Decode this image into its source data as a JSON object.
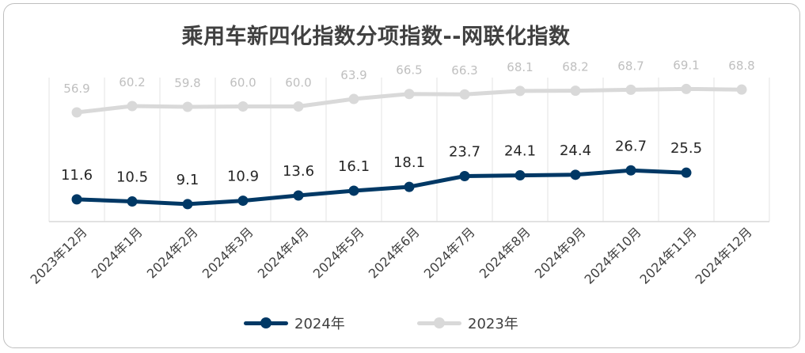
{
  "chart_data": {
    "type": "line",
    "title": "乘用车新四化指数分项指数--网联化指数",
    "categories": [
      "2023年12月",
      "2024年1月",
      "2024年2月",
      "2024年3月",
      "2024年4月",
      "2024年5月",
      "2024年6月",
      "2024年7月",
      "2024年8月",
      "2024年9月",
      "2024年10月",
      "2024年11月",
      "2024年12月"
    ],
    "series": [
      {
        "name": "2024年",
        "color": "#003865",
        "values": [
          11.6,
          10.5,
          9.1,
          10.9,
          13.6,
          16.1,
          18.1,
          23.7,
          24.1,
          24.4,
          26.7,
          25.5,
          null
        ],
        "labels": [
          "11.6",
          "10.5",
          "9.1",
          "10.9",
          "13.6",
          "16.1",
          "18.1",
          "23.7",
          "24.1",
          "24.4",
          "26.7",
          "25.5",
          ""
        ]
      },
      {
        "name": "2023年",
        "color": "#d9d9d9",
        "values": [
          56.9,
          60.2,
          59.8,
          60.0,
          60.0,
          63.9,
          66.5,
          66.3,
          68.1,
          68.2,
          68.7,
          69.1,
          68.8
        ],
        "labels": [
          "56.9",
          "60.2",
          "59.8",
          "60.0",
          "60.0",
          "63.9",
          "66.5",
          "66.3",
          "68.1",
          "68.2",
          "68.7",
          "69.1",
          "68.8"
        ]
      }
    ],
    "xlabel": "",
    "ylabel": "",
    "grid": "vertical",
    "legend_position": "bottom"
  }
}
